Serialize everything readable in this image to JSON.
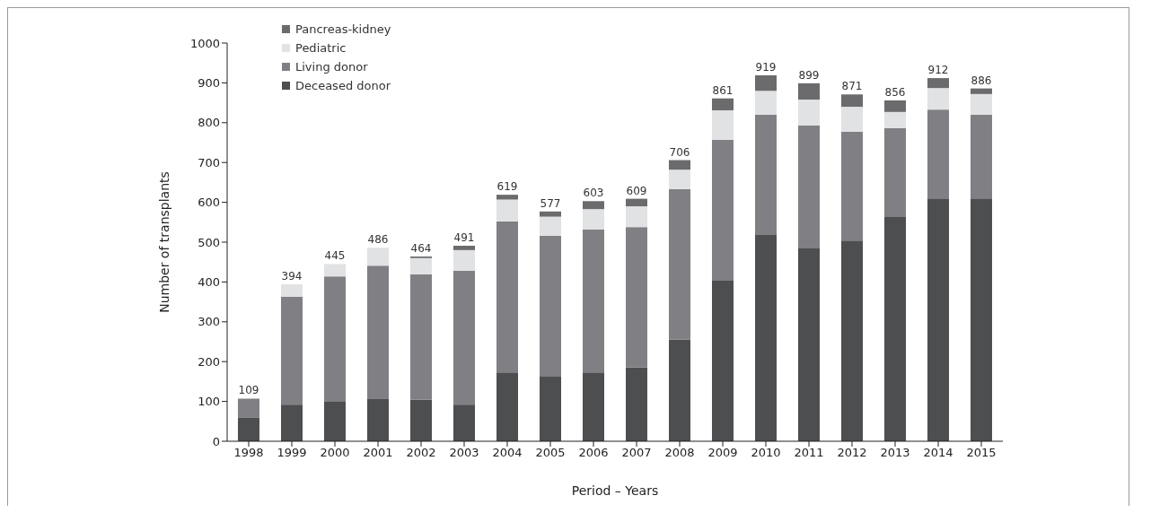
{
  "chart_data": {
    "type": "bar",
    "stacked": true,
    "xlabel": "Period – Years",
    "ylabel": "Number of transplants",
    "categories": [
      "1998",
      "1999",
      "2000",
      "2001",
      "2002",
      "2003",
      "2004",
      "2005",
      "2006",
      "2007",
      "2008",
      "2009",
      "2010",
      "2011",
      "2012",
      "2013",
      "2014",
      "2015"
    ],
    "series": [
      {
        "name": "Deceased donor",
        "color": "#4d4e50",
        "values": [
          60,
          92,
          99,
          106,
          104,
          92,
          173,
          162,
          173,
          185,
          255,
          403,
          518,
          484,
          504,
          563,
          610,
          610
        ]
      },
      {
        "name": "Living donor",
        "color": "#808084",
        "values": [
          47,
          271,
          315,
          335,
          315,
          336,
          379,
          354,
          359,
          353,
          378,
          354,
          302,
          309,
          273,
          223,
          223,
          210
        ]
      },
      {
        "name": "Pediatric",
        "color": "#e1e2e4",
        "values": [
          null,
          31,
          31,
          45,
          41,
          52,
          55,
          48,
          51,
          52,
          49,
          74,
          60,
          65,
          63,
          41,
          54,
          52
        ]
      },
      {
        "name": "Pancreas-kidney",
        "color": "#6b6b6d",
        "values": [
          0,
          0,
          0,
          0,
          4,
          11,
          12,
          13,
          20,
          19,
          24,
          30,
          39,
          41,
          31,
          29,
          25,
          14
        ]
      }
    ],
    "totals": [
      "109",
      "394",
      "445",
      "486",
      "464",
      "491",
      "619",
      "577",
      "603",
      "609",
      "706",
      "861",
      "919",
      "899",
      "871",
      "856",
      "912",
      "886"
    ],
    "ylim": [
      0,
      1000
    ],
    "yticks": [
      0,
      100,
      200,
      300,
      400,
      500,
      600,
      700,
      800,
      900,
      1000
    ],
    "grid": false,
    "legend": "top left"
  }
}
